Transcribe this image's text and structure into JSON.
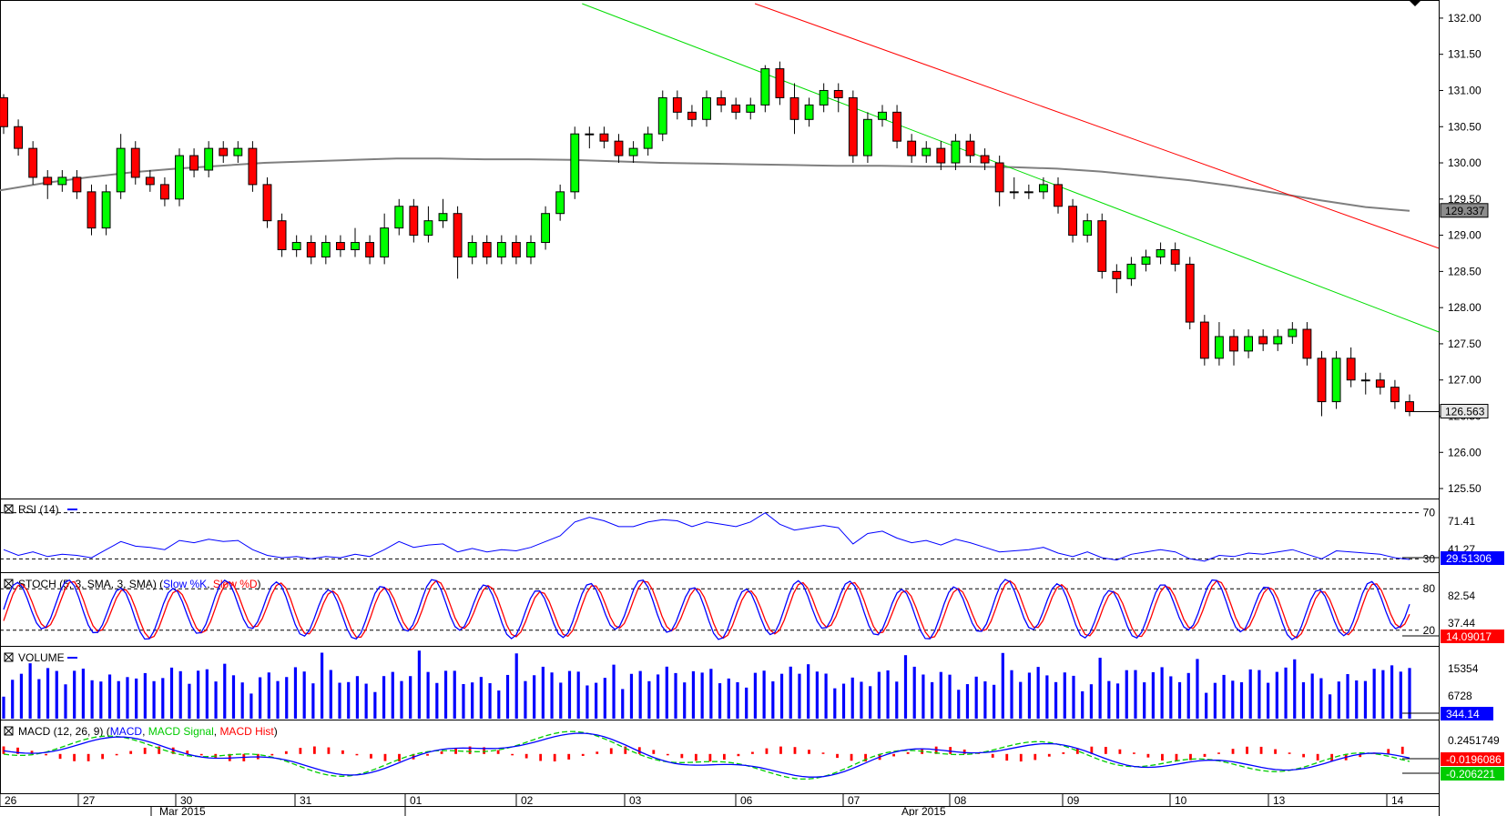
{
  "chart_data": {
    "type": "candlestick",
    "main": {
      "yticks": [
        "132.00",
        "131.50",
        "131.00",
        "130.50",
        "130.00",
        "129.50",
        "129.00",
        "128.50",
        "128.00",
        "127.50",
        "127.00",
        "126.50",
        "126.00",
        "125.50"
      ],
      "ylim": [
        125.4,
        132.2
      ],
      "ma_label": "129.337",
      "last_label": "126.563",
      "ma_value": 129.337,
      "last_value": 126.563,
      "ma_series": [
        129.62,
        129.72,
        129.8,
        129.87,
        129.92,
        129.96,
        130.0,
        130.02,
        130.04,
        130.06,
        130.06,
        130.05,
        130.05,
        130.04,
        130.02,
        130.0,
        129.99,
        129.98,
        129.97,
        129.96,
        129.96,
        129.95,
        129.95,
        129.94,
        129.92,
        129.88,
        129.82,
        129.76,
        129.68,
        129.58,
        129.48,
        129.39,
        129.337
      ],
      "candles": [
        [
          130.9,
          130.5,
          130.95,
          130.4
        ],
        [
          130.5,
          130.2,
          130.6,
          130.1
        ],
        [
          130.2,
          129.8,
          130.3,
          129.7
        ],
        [
          129.8,
          129.7,
          129.9,
          129.5
        ],
        [
          129.7,
          129.8,
          129.9,
          129.6
        ],
        [
          129.8,
          129.6,
          129.9,
          129.5
        ],
        [
          129.6,
          129.1,
          129.7,
          129.0
        ],
        [
          129.1,
          129.6,
          129.7,
          129.0
        ],
        [
          129.6,
          130.2,
          130.4,
          129.5
        ],
        [
          130.2,
          129.8,
          130.3,
          129.7
        ],
        [
          129.8,
          129.7,
          129.9,
          129.6
        ],
        [
          129.7,
          129.5,
          129.8,
          129.4
        ],
        [
          129.5,
          130.1,
          130.2,
          129.4
        ],
        [
          130.1,
          129.9,
          130.2,
          129.8
        ],
        [
          129.9,
          130.2,
          130.3,
          129.8
        ],
        [
          130.2,
          130.1,
          130.3,
          130.0
        ],
        [
          130.1,
          130.2,
          130.3,
          130.0
        ],
        [
          130.2,
          129.7,
          130.3,
          129.6
        ],
        [
          129.7,
          129.2,
          129.8,
          129.1
        ],
        [
          129.2,
          128.8,
          129.3,
          128.7
        ],
        [
          128.8,
          128.9,
          129.0,
          128.7
        ],
        [
          128.9,
          128.7,
          129.0,
          128.6
        ],
        [
          128.7,
          128.9,
          129.0,
          128.6
        ],
        [
          128.9,
          128.8,
          129.0,
          128.7
        ],
        [
          128.8,
          128.9,
          129.1,
          128.7
        ],
        [
          128.9,
          128.7,
          129.0,
          128.6
        ],
        [
          128.7,
          129.1,
          129.3,
          128.6
        ],
        [
          129.1,
          129.4,
          129.5,
          129.0
        ],
        [
          129.4,
          129.0,
          129.5,
          128.9
        ],
        [
          129.0,
          129.2,
          129.4,
          128.9
        ],
        [
          129.2,
          129.3,
          129.5,
          129.1
        ],
        [
          129.3,
          128.7,
          129.4,
          128.4
        ],
        [
          128.7,
          128.9,
          129.0,
          128.6
        ],
        [
          128.9,
          128.7,
          129.0,
          128.6
        ],
        [
          128.7,
          128.9,
          129.0,
          128.6
        ],
        [
          128.9,
          128.7,
          129.0,
          128.6
        ],
        [
          128.7,
          128.9,
          129.0,
          128.6
        ],
        [
          128.9,
          129.3,
          129.4,
          128.8
        ],
        [
          129.3,
          129.6,
          129.7,
          129.2
        ],
        [
          129.6,
          130.4,
          130.5,
          129.5
        ],
        [
          130.4,
          130.4,
          130.5,
          130.2
        ],
        [
          130.4,
          130.3,
          130.5,
          130.2
        ],
        [
          130.3,
          130.1,
          130.4,
          130.0
        ],
        [
          130.1,
          130.2,
          130.3,
          130.0
        ],
        [
          130.2,
          130.4,
          130.5,
          130.1
        ],
        [
          130.4,
          130.9,
          131.0,
          130.3
        ],
        [
          130.9,
          130.7,
          131.0,
          130.6
        ],
        [
          130.7,
          130.6,
          130.8,
          130.5
        ],
        [
          130.6,
          130.9,
          131.0,
          130.5
        ],
        [
          130.9,
          130.8,
          131.0,
          130.7
        ],
        [
          130.8,
          130.7,
          130.9,
          130.6
        ],
        [
          130.7,
          130.8,
          130.9,
          130.6
        ],
        [
          130.8,
          131.3,
          131.35,
          130.7
        ],
        [
          131.3,
          130.9,
          131.4,
          130.8
        ],
        [
          130.9,
          130.6,
          131.1,
          130.4
        ],
        [
          130.6,
          130.8,
          130.9,
          130.5
        ],
        [
          130.8,
          131.0,
          131.1,
          130.7
        ],
        [
          131.0,
          130.9,
          131.1,
          130.7
        ],
        [
          130.9,
          130.1,
          131.0,
          130.0
        ],
        [
          130.1,
          130.6,
          130.7,
          130.0
        ],
        [
          130.6,
          130.7,
          130.8,
          130.5
        ],
        [
          130.7,
          130.3,
          130.8,
          130.2
        ],
        [
          130.3,
          130.1,
          130.4,
          130.0
        ],
        [
          130.1,
          130.2,
          130.3,
          130.0
        ],
        [
          130.2,
          130.0,
          130.3,
          129.9
        ],
        [
          130.0,
          130.3,
          130.4,
          129.9
        ],
        [
          130.3,
          130.1,
          130.4,
          130.0
        ],
        [
          130.1,
          130.0,
          130.2,
          129.9
        ],
        [
          130.0,
          129.6,
          130.1,
          129.4
        ],
        [
          129.6,
          129.6,
          129.8,
          129.5
        ],
        [
          129.6,
          129.6,
          129.7,
          129.5
        ],
        [
          129.6,
          129.7,
          129.8,
          129.5
        ],
        [
          129.7,
          129.4,
          129.8,
          129.3
        ],
        [
          129.4,
          129.0,
          129.5,
          128.9
        ],
        [
          129.0,
          129.2,
          129.3,
          128.9
        ],
        [
          129.2,
          128.5,
          129.3,
          128.4
        ],
        [
          128.5,
          128.4,
          128.6,
          128.2
        ],
        [
          128.4,
          128.6,
          128.7,
          128.3
        ],
        [
          128.6,
          128.7,
          128.8,
          128.5
        ],
        [
          128.7,
          128.8,
          128.9,
          128.6
        ],
        [
          128.8,
          128.6,
          128.9,
          128.5
        ],
        [
          128.6,
          127.8,
          128.7,
          127.7
        ],
        [
          127.8,
          127.3,
          127.9,
          127.2
        ],
        [
          127.3,
          127.6,
          127.8,
          127.2
        ],
        [
          127.6,
          127.4,
          127.7,
          127.2
        ],
        [
          127.4,
          127.6,
          127.7,
          127.3
        ],
        [
          127.6,
          127.5,
          127.7,
          127.4
        ],
        [
          127.5,
          127.6,
          127.7,
          127.4
        ],
        [
          127.6,
          127.7,
          127.8,
          127.5
        ],
        [
          127.7,
          127.3,
          127.8,
          127.2
        ],
        [
          127.3,
          126.7,
          127.4,
          126.5
        ],
        [
          126.7,
          127.3,
          127.4,
          126.6
        ],
        [
          127.3,
          127.0,
          127.45,
          126.9
        ],
        [
          127.0,
          127.0,
          127.1,
          126.8
        ],
        [
          127.0,
          126.9,
          127.1,
          126.8
        ],
        [
          126.9,
          126.7,
          127.0,
          126.6
        ],
        [
          126.7,
          126.563,
          126.8,
          126.5
        ]
      ],
      "channel_upper": [
        [
          51.3,
          132.2
        ],
        [
          125.9,
          126.8
        ]
      ],
      "channel_lower": [
        [
          39.5,
          132.2
        ],
        [
          125.9,
          125.5
        ]
      ]
    },
    "rsi": {
      "label": "RSI (14)",
      "levels": [
        70,
        30
      ],
      "level_labels": [
        "70",
        "30"
      ],
      "axis_labels": [
        "71.41",
        "41.27"
      ],
      "last_label": "29.51306",
      "ylim": [
        20,
        80
      ],
      "values": [
        38,
        33,
        36,
        32,
        34,
        33,
        31,
        38,
        45,
        41,
        40,
        38,
        46,
        44,
        47,
        45,
        46,
        38,
        33,
        31,
        32,
        30,
        32,
        31,
        34,
        32,
        38,
        45,
        40,
        42,
        43,
        36,
        39,
        36,
        38,
        37,
        40,
        45,
        50,
        62,
        66,
        63,
        58,
        58,
        62,
        64,
        63,
        58,
        62,
        60,
        58,
        62,
        70,
        60,
        55,
        57,
        59,
        57,
        43,
        52,
        54,
        48,
        44,
        46,
        42,
        47,
        44,
        40,
        36,
        37,
        38,
        40,
        35,
        32,
        36,
        31,
        29,
        34,
        36,
        38,
        36,
        30,
        28,
        33,
        32,
        35,
        34,
        36,
        38,
        34,
        30,
        37,
        36,
        35,
        34,
        31,
        29.5
      ]
    },
    "stoch": {
      "label": "STOCH (5, 3, SMA, 3, SMA)",
      "k_name": "Slow %K",
      "d_name": "Slow %D",
      "levels": [
        80,
        20
      ],
      "level_labels": [
        "80",
        "20"
      ],
      "axis_labels": [
        "82.54",
        "37.44"
      ],
      "last_label": "14.09017",
      "ylim": [
        0,
        100
      ]
    },
    "volume": {
      "label": "VOLUME",
      "axis_labels": [
        "15354",
        "6728"
      ],
      "last_label": "344.14",
      "ymax": 17500
    },
    "macd": {
      "label": "MACD (12, 26, 9)",
      "names": [
        "MACD",
        "MACD Signal",
        "MACD Hist"
      ],
      "axis_labels": [
        "0.2451749"
      ],
      "last_labels": [
        "-0.0196086",
        "-0.206221"
      ],
      "ylim": [
        -0.62,
        0.6
      ]
    },
    "xaxis": {
      "day_labels": [
        "26",
        "27",
        "30",
        "31",
        "01",
        "02",
        "03",
        "06",
        "07",
        "08",
        "09",
        "10",
        "13",
        "14"
      ],
      "month_labels": [
        "Mar 2015",
        "Apr 2015"
      ]
    }
  }
}
